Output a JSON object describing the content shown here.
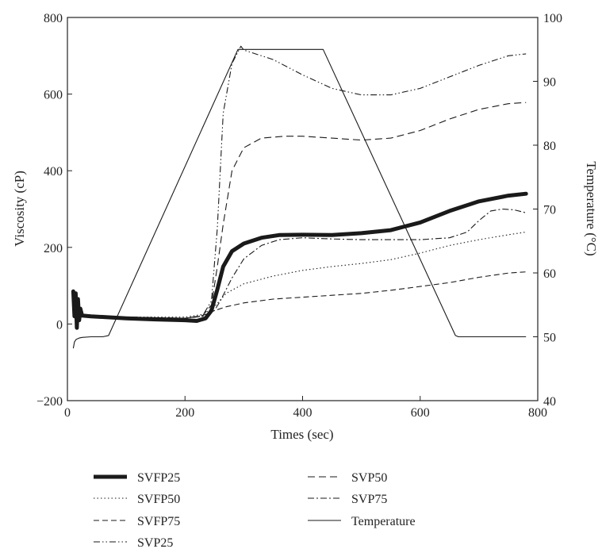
{
  "chart_data": {
    "type": "line",
    "title": "",
    "xlabel": "Times (sec)",
    "ylabel": "Viscosity (cP)",
    "y2label": "Temperature (°C)",
    "xlim": [
      0,
      800
    ],
    "ylim": [
      -200,
      800
    ],
    "y2lim": [
      40,
      100
    ],
    "xticks": [
      "0",
      "200",
      "400",
      "600",
      "800"
    ],
    "yticks": [
      "−200",
      "0",
      "200",
      "400",
      "600",
      "800"
    ],
    "y2ticks": [
      "40",
      "50",
      "60",
      "70",
      "80",
      "90",
      "100"
    ],
    "grid": false,
    "legend_position": "below",
    "series": [
      {
        "name": "SVFP25",
        "axis": "left",
        "style": "thick",
        "x": [
          10,
          12,
          14,
          16,
          18,
          20,
          22,
          25,
          40,
          100,
          150,
          200,
          220,
          235,
          245,
          255,
          265,
          280,
          300,
          330,
          360,
          400,
          450,
          500,
          550,
          600,
          650,
          700,
          750,
          780
        ],
        "y": [
          85,
          20,
          80,
          -10,
          65,
          10,
          40,
          22,
          20,
          15,
          12,
          10,
          8,
          15,
          35,
          90,
          150,
          190,
          210,
          225,
          232,
          233,
          232,
          237,
          245,
          265,
          295,
          320,
          335,
          340
        ]
      },
      {
        "name": "SVFP50",
        "axis": "left",
        "style": "dotted",
        "x": [
          20,
          100,
          200,
          230,
          250,
          270,
          300,
          350,
          400,
          450,
          500,
          550,
          600,
          650,
          700,
          750,
          780
        ],
        "y": [
          22,
          18,
          18,
          25,
          45,
          80,
          105,
          125,
          140,
          150,
          158,
          168,
          185,
          205,
          220,
          233,
          240
        ]
      },
      {
        "name": "SVFP75",
        "axis": "left",
        "style": "dashed",
        "x": [
          20,
          100,
          200,
          230,
          250,
          270,
          300,
          350,
          400,
          450,
          500,
          550,
          600,
          650,
          700,
          750,
          780
        ],
        "y": [
          22,
          18,
          15,
          22,
          35,
          45,
          55,
          65,
          70,
          75,
          80,
          88,
          98,
          108,
          122,
          133,
          136
        ]
      },
      {
        "name": "SVP25",
        "axis": "left",
        "style": "dashdotdot",
        "x": [
          20,
          100,
          200,
          230,
          245,
          255,
          265,
          280,
          295,
          300,
          310,
          350,
          400,
          450,
          500,
          550,
          600,
          650,
          700,
          750,
          780
        ],
        "y": [
          22,
          18,
          15,
          22,
          60,
          250,
          550,
          680,
          725,
          715,
          710,
          690,
          650,
          615,
          598,
          598,
          615,
          645,
          675,
          700,
          705
        ]
      },
      {
        "name": "SVP50",
        "axis": "left",
        "style": "longdash",
        "x": [
          20,
          100,
          200,
          230,
          245,
          255,
          265,
          280,
          300,
          330,
          370,
          400,
          450,
          500,
          550,
          600,
          650,
          700,
          750,
          780
        ],
        "y": [
          22,
          18,
          15,
          22,
          50,
          150,
          260,
          400,
          460,
          485,
          490,
          490,
          485,
          480,
          485,
          505,
          535,
          560,
          575,
          578
        ]
      },
      {
        "name": "SVP75",
        "axis": "left",
        "style": "dashdot",
        "x": [
          20,
          100,
          200,
          230,
          250,
          260,
          280,
          300,
          330,
          360,
          400,
          450,
          500,
          550,
          600,
          650,
          680,
          700,
          720,
          740,
          760,
          780
        ],
        "y": [
          22,
          18,
          15,
          20,
          35,
          60,
          120,
          170,
          205,
          220,
          225,
          222,
          220,
          220,
          220,
          225,
          240,
          270,
          295,
          300,
          298,
          290
        ]
      },
      {
        "name": "Temperature",
        "axis": "right",
        "style": "solid",
        "x": [
          10,
          12,
          15,
          20,
          25,
          40,
          60,
          70,
          290,
          300,
          350,
          400,
          435,
          660,
          665,
          700,
          750,
          780
        ],
        "y": [
          48.2,
          49.2,
          49.6,
          49.8,
          49.9,
          50.0,
          50.0,
          50.2,
          95.0,
          95.0,
          95.0,
          95.0,
          95.0,
          50.2,
          50.0,
          50.0,
          50.0,
          50.0
        ]
      }
    ]
  }
}
